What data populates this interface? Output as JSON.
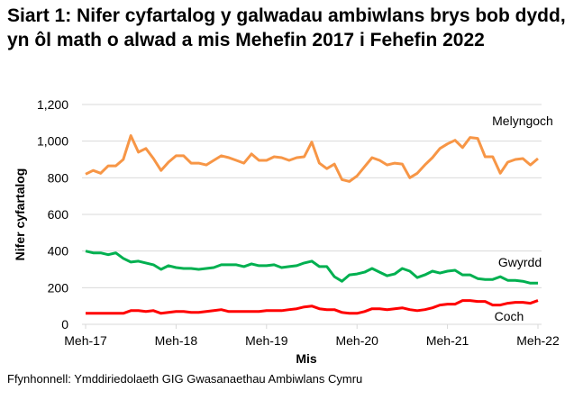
{
  "chart_data": {
    "type": "line",
    "title": "Siart 1: Nifer cyfartalog y galwadau ambiwlans brys bob dydd, yn ôl math o alwad a mis Mehefin 2017 i Fehefin 2022",
    "xlabel": "Mis",
    "ylabel": "Nifer cyfartalog",
    "ylim": [
      0,
      1200
    ],
    "yticks": [
      "0",
      "200",
      "400",
      "600",
      "800",
      "1,000",
      "1,200"
    ],
    "ytick_values": [
      0,
      200,
      400,
      600,
      800,
      1000,
      1200
    ],
    "xticks": [
      "Meh-17",
      "Meh-18",
      "Meh-19",
      "Meh-20",
      "Meh-21",
      "Meh-22"
    ],
    "x_range": [
      "2017-06",
      "2022-06"
    ],
    "grid": true,
    "series": [
      {
        "name": "Melyngoch",
        "color": "#F79646",
        "values": [
          820,
          840,
          825,
          865,
          865,
          900,
          1030,
          940,
          960,
          905,
          840,
          885,
          920,
          920,
          880,
          880,
          870,
          895,
          920,
          910,
          895,
          880,
          930,
          895,
          895,
          915,
          910,
          895,
          910,
          915,
          995,
          880,
          850,
          875,
          790,
          780,
          810,
          860,
          910,
          895,
          870,
          880,
          875,
          800,
          825,
          870,
          910,
          960,
          985,
          1005,
          965,
          1020,
          1015,
          915,
          915,
          825,
          885,
          900,
          905,
          870,
          905
        ]
      },
      {
        "name": "Gwyrdd",
        "color": "#00B050",
        "values": [
          400,
          390,
          390,
          380,
          390,
          360,
          340,
          345,
          335,
          325,
          300,
          320,
          310,
          305,
          305,
          300,
          305,
          310,
          325,
          325,
          325,
          315,
          330,
          320,
          320,
          325,
          310,
          315,
          320,
          335,
          345,
          315,
          315,
          260,
          235,
          270,
          275,
          285,
          305,
          285,
          265,
          275,
          305,
          290,
          255,
          270,
          290,
          280,
          290,
          295,
          270,
          270,
          250,
          245,
          245,
          260,
          240,
          240,
          235,
          225,
          225
        ]
      },
      {
        "name": "Coch",
        "color": "#FF0000",
        "values": [
          60,
          60,
          60,
          60,
          60,
          60,
          75,
          75,
          70,
          75,
          60,
          65,
          70,
          70,
          65,
          65,
          70,
          75,
          80,
          70,
          70,
          70,
          70,
          70,
          75,
          75,
          75,
          80,
          85,
          95,
          100,
          85,
          80,
          80,
          65,
          60,
          60,
          70,
          85,
          85,
          80,
          85,
          90,
          80,
          75,
          80,
          90,
          105,
          110,
          110,
          130,
          130,
          125,
          125,
          105,
          105,
          115,
          120,
          120,
          115,
          130
        ]
      }
    ]
  },
  "source": "Ffynhonnell: Ymddiriedolaeth GIG Gwasanaethau Ambiwlans Cymru"
}
